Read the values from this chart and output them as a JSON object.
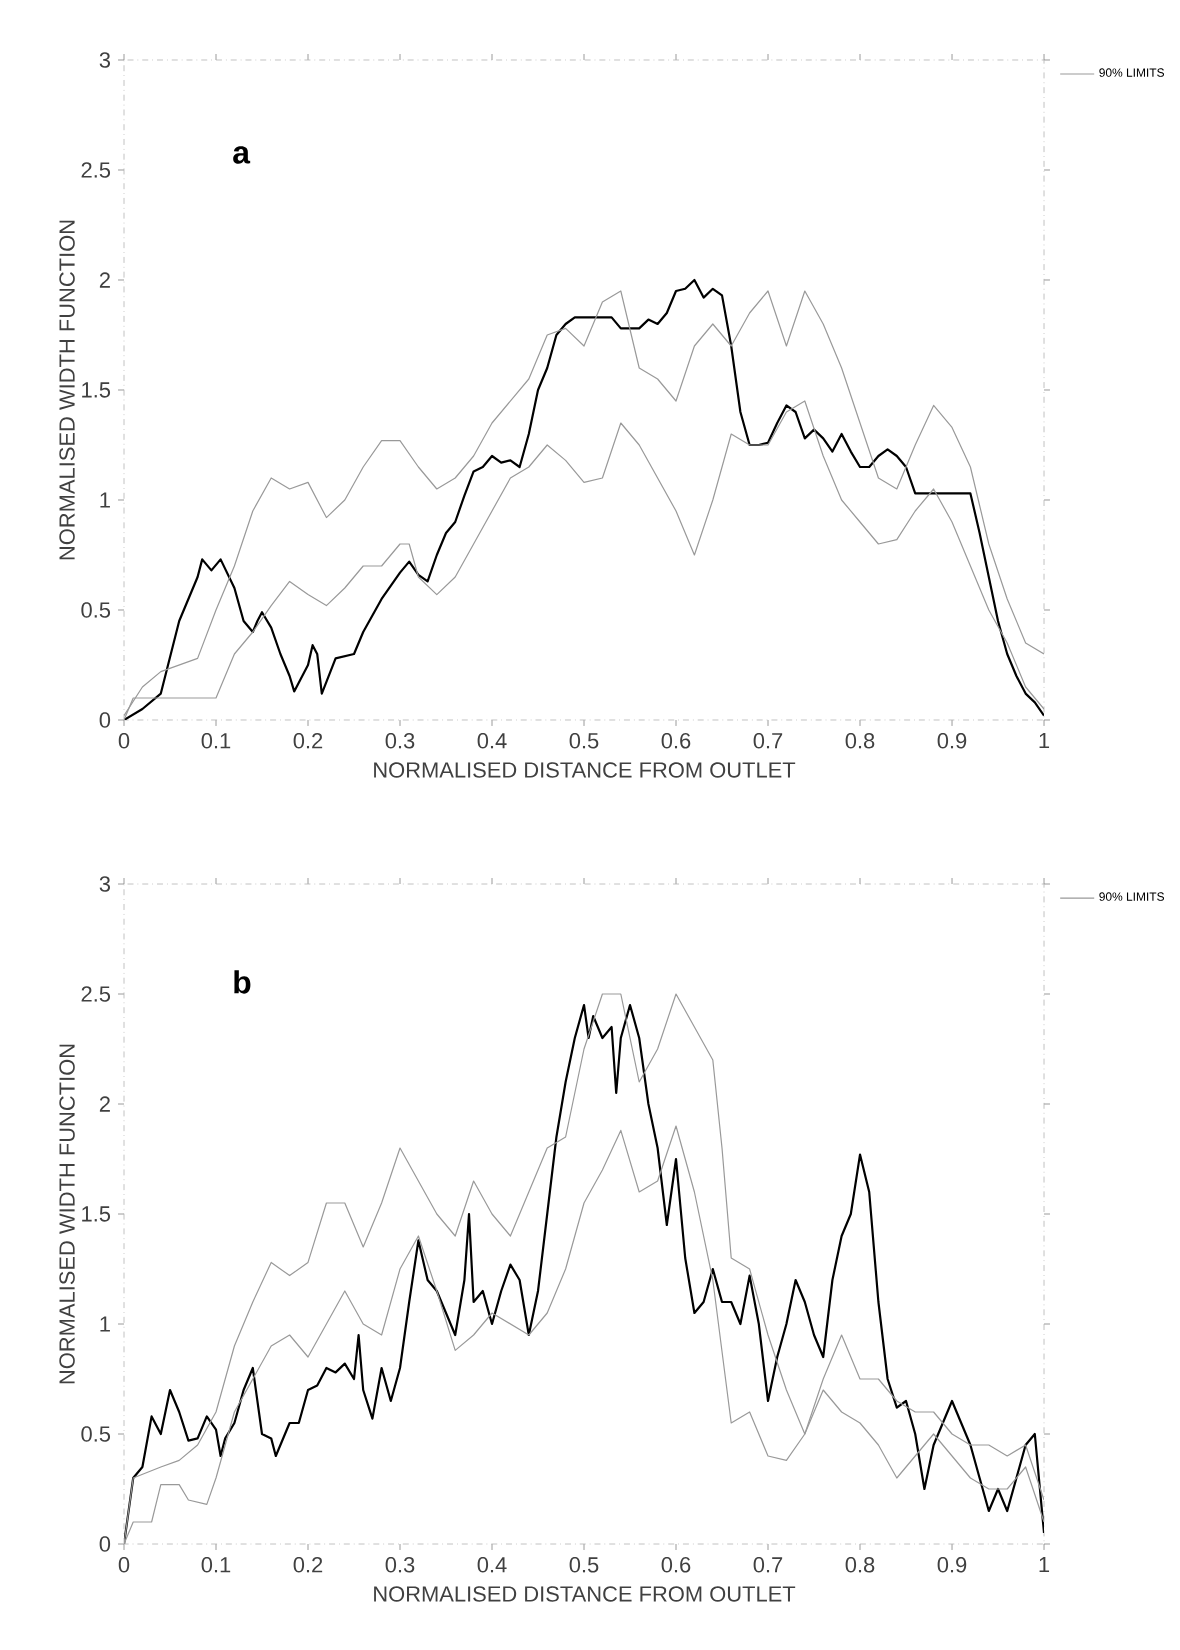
{
  "chart_data": [
    {
      "type": "line",
      "xlabel": "NORMALISED DISTANCE FROM OUTLET",
      "ylabel": "NORMALISED WIDTH FUNCTION",
      "annotations": [
        "a"
      ],
      "xlim": [
        0,
        1
      ],
      "ylim": [
        0,
        3
      ],
      "xticks": [
        0,
        0.1,
        0.2,
        0.3,
        0.4,
        0.5,
        0.6,
        0.7,
        0.8,
        0.9,
        1
      ],
      "yticks": [
        0,
        0.5,
        1,
        1.5,
        2,
        2.5,
        3
      ],
      "legend": "top right",
      "series": [
        {
          "color": "#000000",
          "x": [
            0,
            0.02,
            0.04,
            0.06,
            0.08,
            0.085,
            0.095,
            0.105,
            0.12,
            0.13,
            0.14,
            0.145,
            0.15,
            0.16,
            0.17,
            0.18,
            0.185,
            0.2,
            0.205,
            0.21,
            0.215,
            0.23,
            0.25,
            0.26,
            0.28,
            0.3,
            0.31,
            0.32,
            0.33,
            0.34,
            0.35,
            0.36,
            0.37,
            0.38,
            0.39,
            0.4,
            0.41,
            0.42,
            0.43,
            0.44,
            0.45,
            0.46,
            0.47,
            0.48,
            0.49,
            0.53,
            0.54,
            0.56,
            0.57,
            0.58,
            0.59,
            0.6,
            0.61,
            0.62,
            0.63,
            0.64,
            0.65,
            0.66,
            0.67,
            0.68,
            0.69,
            0.7,
            0.71,
            0.72,
            0.73,
            0.74,
            0.75,
            0.76,
            0.77,
            0.78,
            0.79,
            0.8,
            0.81,
            0.82,
            0.83,
            0.84,
            0.85,
            0.86,
            0.92,
            0.93,
            0.94,
            0.95,
            0.96,
            0.97,
            0.98,
            0.99,
            1
          ],
          "values": [
            0,
            0.05,
            0.12,
            0.45,
            0.65,
            0.73,
            0.68,
            0.73,
            0.6,
            0.45,
            0.4,
            0.45,
            0.49,
            0.42,
            0.3,
            0.2,
            0.13,
            0.25,
            0.34,
            0.3,
            0.12,
            0.28,
            0.3,
            0.4,
            0.55,
            0.67,
            0.72,
            0.66,
            0.63,
            0.75,
            0.85,
            0.9,
            1.02,
            1.13,
            1.15,
            1.2,
            1.17,
            1.18,
            1.15,
            1.3,
            1.5,
            1.6,
            1.75,
            1.8,
            1.83,
            1.83,
            1.78,
            1.78,
            1.82,
            1.8,
            1.85,
            1.95,
            1.96,
            2,
            1.92,
            1.96,
            1.93,
            1.7,
            1.4,
            1.25,
            1.25,
            1.26,
            1.35,
            1.43,
            1.4,
            1.28,
            1.32,
            1.28,
            1.22,
            1.3,
            1.22,
            1.15,
            1.15,
            1.2,
            1.23,
            1.2,
            1.15,
            1.03,
            1.03,
            0.85,
            0.65,
            0.45,
            0.3,
            0.2,
            0.12,
            0.08,
            0.02
          ]
        },
        {
          "name": "90% LIMITS",
          "color": "#999999",
          "x": [
            0,
            0.02,
            0.04,
            0.06,
            0.08,
            0.1,
            0.12,
            0.14,
            0.16,
            0.18,
            0.2,
            0.22,
            0.24,
            0.26,
            0.28,
            0.3,
            0.32,
            0.34,
            0.36,
            0.38,
            0.4,
            0.42,
            0.44,
            0.46,
            0.48,
            0.5,
            0.52,
            0.54,
            0.56,
            0.58,
            0.6,
            0.62,
            0.64,
            0.66,
            0.68,
            0.7,
            0.72,
            0.74,
            0.76,
            0.78,
            0.8,
            0.82,
            0.84,
            0.86,
            0.88,
            0.9,
            0.92,
            0.94,
            0.96,
            0.98,
            1
          ],
          "values": [
            0.02,
            0.15,
            0.22,
            0.25,
            0.28,
            0.5,
            0.7,
            0.95,
            1.1,
            1.05,
            1.08,
            0.92,
            1,
            1.15,
            1.27,
            1.27,
            1.15,
            1.05,
            1.1,
            1.2,
            1.35,
            1.45,
            1.55,
            1.75,
            1.78,
            1.7,
            1.9,
            1.95,
            1.6,
            1.55,
            1.45,
            1.7,
            1.8,
            1.7,
            1.85,
            1.95,
            1.7,
            1.95,
            1.8,
            1.6,
            1.35,
            1.1,
            1.05,
            1.25,
            1.43,
            1.33,
            1.15,
            0.8,
            0.55,
            0.35,
            0.3
          ]
        },
        {
          "color": "#999999",
          "x": [
            0,
            0.01,
            0.1,
            0.12,
            0.14,
            0.16,
            0.18,
            0.2,
            0.22,
            0.24,
            0.26,
            0.28,
            0.3,
            0.31,
            0.32,
            0.34,
            0.36,
            0.38,
            0.4,
            0.42,
            0.44,
            0.46,
            0.48,
            0.5,
            0.52,
            0.54,
            0.56,
            0.58,
            0.6,
            0.62,
            0.64,
            0.66,
            0.68,
            0.7,
            0.72,
            0.74,
            0.76,
            0.78,
            0.8,
            0.82,
            0.84,
            0.86,
            0.88,
            0.9,
            0.92,
            0.94,
            0.96,
            0.98,
            1
          ],
          "values": [
            0,
            0.1,
            0.1,
            0.3,
            0.4,
            0.52,
            0.63,
            0.57,
            0.52,
            0.6,
            0.7,
            0.7,
            0.8,
            0.8,
            0.65,
            0.57,
            0.65,
            0.8,
            0.95,
            1.1,
            1.15,
            1.25,
            1.18,
            1.08,
            1.1,
            1.35,
            1.25,
            1.1,
            0.95,
            0.75,
            1,
            1.3,
            1.25,
            1.25,
            1.4,
            1.45,
            1.2,
            1,
            0.9,
            0.8,
            0.82,
            0.95,
            1.05,
            0.9,
            0.7,
            0.5,
            0.35,
            0.15,
            0.05
          ]
        }
      ]
    },
    {
      "type": "line",
      "xlabel": "NORMALISED DISTANCE FROM OUTLET",
      "ylabel": "NORMALISED WIDTH FUNCTION",
      "annotations": [
        "b"
      ],
      "xlim": [
        0,
        1
      ],
      "ylim": [
        0,
        3
      ],
      "xticks": [
        0,
        0.1,
        0.2,
        0.3,
        0.4,
        0.5,
        0.6,
        0.7,
        0.8,
        0.9,
        1
      ],
      "yticks": [
        0,
        0.5,
        1,
        1.5,
        2,
        2.5,
        3
      ],
      "legend": "top right",
      "series": [
        {
          "color": "#000000",
          "x": [
            0,
            0.01,
            0.02,
            0.03,
            0.04,
            0.05,
            0.06,
            0.07,
            0.08,
            0.09,
            0.1,
            0.105,
            0.11,
            0.12,
            0.13,
            0.14,
            0.15,
            0.16,
            0.165,
            0.18,
            0.19,
            0.2,
            0.21,
            0.22,
            0.23,
            0.24,
            0.25,
            0.255,
            0.26,
            0.27,
            0.28,
            0.29,
            0.3,
            0.31,
            0.32,
            0.33,
            0.34,
            0.35,
            0.36,
            0.37,
            0.375,
            0.38,
            0.39,
            0.4,
            0.41,
            0.42,
            0.43,
            0.44,
            0.45,
            0.46,
            0.47,
            0.48,
            0.49,
            0.5,
            0.505,
            0.51,
            0.52,
            0.53,
            0.535,
            0.54,
            0.55,
            0.56,
            0.57,
            0.58,
            0.59,
            0.6,
            0.61,
            0.62,
            0.63,
            0.64,
            0.65,
            0.66,
            0.67,
            0.68,
            0.69,
            0.7,
            0.71,
            0.72,
            0.73,
            0.74,
            0.75,
            0.76,
            0.77,
            0.78,
            0.79,
            0.8,
            0.81,
            0.82,
            0.83,
            0.84,
            0.85,
            0.86,
            0.87,
            0.88,
            0.89,
            0.9,
            0.91,
            0.92,
            0.93,
            0.94,
            0.95,
            0.96,
            0.97,
            0.98,
            0.99,
            1
          ],
          "values": [
            0,
            0.3,
            0.35,
            0.58,
            0.5,
            0.7,
            0.6,
            0.47,
            0.48,
            0.58,
            0.52,
            0.4,
            0.48,
            0.55,
            0.7,
            0.8,
            0.5,
            0.48,
            0.4,
            0.55,
            0.55,
            0.7,
            0.72,
            0.8,
            0.78,
            0.82,
            0.75,
            0.95,
            0.7,
            0.57,
            0.8,
            0.65,
            0.8,
            1.1,
            1.38,
            1.2,
            1.15,
            1.05,
            0.95,
            1.2,
            1.5,
            1.1,
            1.15,
            1,
            1.15,
            1.27,
            1.2,
            0.95,
            1.15,
            1.5,
            1.85,
            2.1,
            2.3,
            2.45,
            2.3,
            2.4,
            2.3,
            2.35,
            2.05,
            2.3,
            2.45,
            2.3,
            2,
            1.8,
            1.45,
            1.75,
            1.3,
            1.05,
            1.1,
            1.25,
            1.1,
            1.1,
            1,
            1.22,
            1,
            0.65,
            0.85,
            1,
            1.2,
            1.1,
            0.95,
            0.85,
            1.2,
            1.4,
            1.5,
            1.77,
            1.6,
            1.1,
            0.75,
            0.62,
            0.65,
            0.5,
            0.25,
            0.45,
            0.55,
            0.65,
            0.55,
            0.45,
            0.3,
            0.15,
            0.25,
            0.15,
            0.3,
            0.45,
            0.5,
            0.05
          ]
        },
        {
          "name": "90% LIMITS",
          "color": "#999999",
          "x": [
            0,
            0.01,
            0.04,
            0.06,
            0.08,
            0.1,
            0.12,
            0.14,
            0.16,
            0.18,
            0.2,
            0.22,
            0.24,
            0.26,
            0.28,
            0.3,
            0.32,
            0.34,
            0.36,
            0.38,
            0.4,
            0.42,
            0.44,
            0.46,
            0.48,
            0.5,
            0.52,
            0.54,
            0.56,
            0.58,
            0.6,
            0.62,
            0.64,
            0.65,
            0.66,
            0.68,
            0.7,
            0.72,
            0.74,
            0.76,
            0.78,
            0.8,
            0.82,
            0.84,
            0.86,
            0.88,
            0.9,
            0.92,
            0.94,
            0.96,
            0.98,
            1
          ],
          "values": [
            0,
            0.3,
            0.35,
            0.38,
            0.45,
            0.6,
            0.9,
            1.1,
            1.28,
            1.22,
            1.28,
            1.55,
            1.55,
            1.35,
            1.55,
            1.8,
            1.65,
            1.5,
            1.4,
            1.65,
            1.5,
            1.4,
            1.6,
            1.8,
            1.85,
            2.25,
            2.5,
            2.5,
            2.1,
            2.25,
            2.5,
            2.35,
            2.2,
            1.8,
            1.3,
            1.25,
            0.95,
            0.7,
            0.5,
            0.75,
            0.95,
            0.75,
            0.75,
            0.65,
            0.6,
            0.6,
            0.5,
            0.45,
            0.45,
            0.4,
            0.45,
            0.2
          ]
        },
        {
          "color": "#999999",
          "x": [
            0,
            0.01,
            0.03,
            0.04,
            0.06,
            0.07,
            0.09,
            0.1,
            0.12,
            0.14,
            0.16,
            0.18,
            0.2,
            0.22,
            0.24,
            0.26,
            0.28,
            0.3,
            0.32,
            0.34,
            0.36,
            0.38,
            0.4,
            0.42,
            0.44,
            0.46,
            0.48,
            0.5,
            0.52,
            0.54,
            0.56,
            0.58,
            0.6,
            0.62,
            0.64,
            0.66,
            0.68,
            0.7,
            0.72,
            0.74,
            0.76,
            0.78,
            0.8,
            0.82,
            0.84,
            0.86,
            0.88,
            0.9,
            0.92,
            0.94,
            0.96,
            0.98,
            1
          ],
          "values": [
            0,
            0.1,
            0.1,
            0.27,
            0.27,
            0.2,
            0.18,
            0.3,
            0.6,
            0.75,
            0.9,
            0.95,
            0.85,
            1,
            1.15,
            1,
            0.95,
            1.25,
            1.4,
            1.15,
            0.88,
            0.95,
            1.05,
            1,
            0.95,
            1.05,
            1.25,
            1.55,
            1.7,
            1.88,
            1.6,
            1.65,
            1.9,
            1.6,
            1.2,
            0.55,
            0.6,
            0.4,
            0.38,
            0.5,
            0.7,
            0.6,
            0.55,
            0.45,
            0.3,
            0.4,
            0.5,
            0.4,
            0.3,
            0.25,
            0.25,
            0.35,
            0.1
          ]
        }
      ]
    }
  ]
}
